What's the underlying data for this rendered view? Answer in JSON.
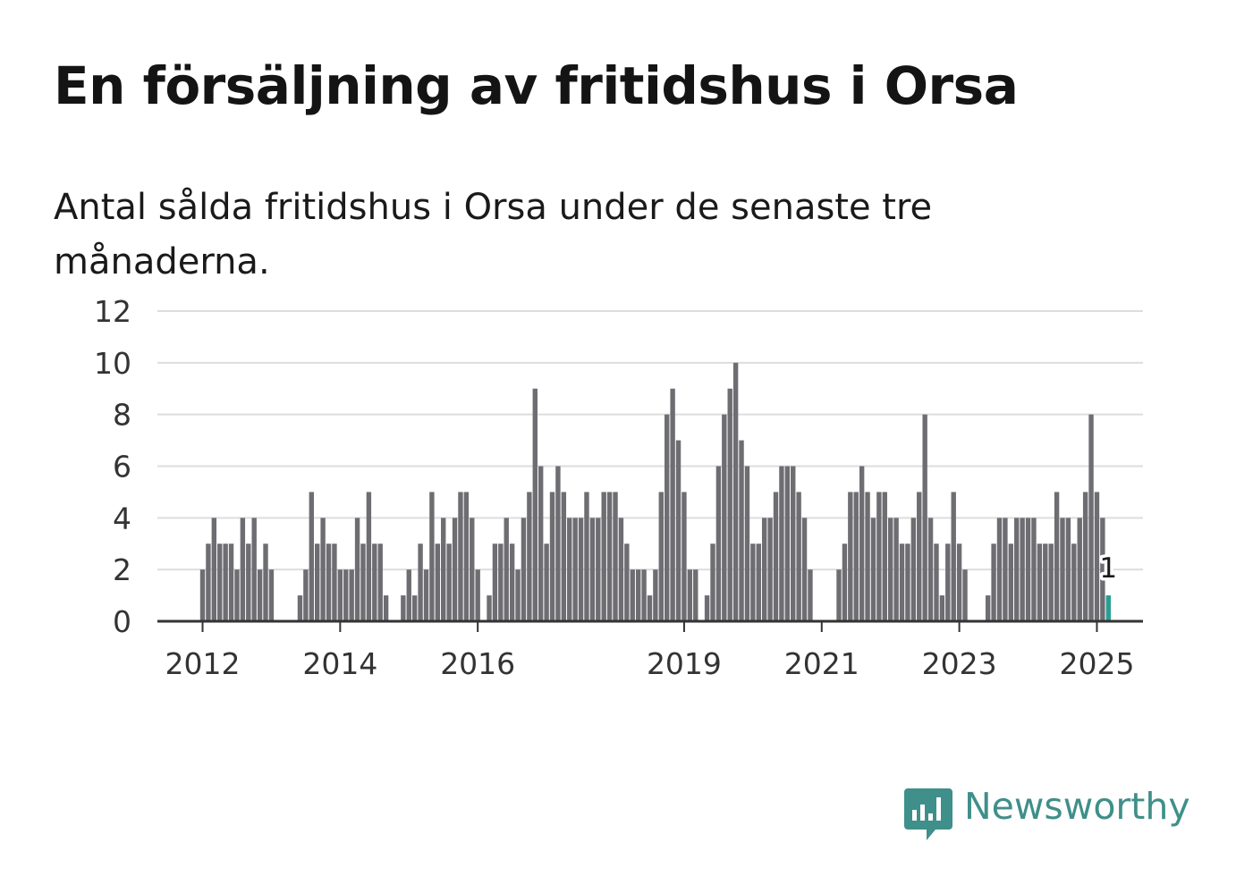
{
  "title": "En försäljning av fritidshus i Orsa",
  "subtitle": "Antal sålda fritidshus i Orsa under de senaste tre månaderna.",
  "brand": {
    "name": "Newsworthy",
    "color": "#3f8f8a",
    "icon": "chart-speech-bubble-icon"
  },
  "colors": {
    "bar": "#6e6d72",
    "highlight": "#2b9d95",
    "grid": "#dddddd",
    "axis": "#333333"
  },
  "chart_data": {
    "type": "bar",
    "x_start": "2012-01",
    "x_end": "2025-01",
    "ylim": [
      0,
      12
    ],
    "yticks": [
      0,
      2,
      4,
      6,
      8,
      10,
      12
    ],
    "xticks": [
      "2012",
      "2014",
      "2016",
      "2019",
      "2021",
      "2023",
      "2025"
    ],
    "grid": true,
    "highlight_label": "1",
    "values": [
      2,
      3,
      4,
      3,
      3,
      3,
      2,
      4,
      3,
      4,
      2,
      3,
      2,
      0,
      0,
      0,
      0,
      1,
      2,
      5,
      3,
      4,
      3,
      3,
      2,
      2,
      2,
      4,
      3,
      5,
      3,
      3,
      1,
      0,
      0,
      1,
      2,
      1,
      3,
      2,
      5,
      3,
      4,
      3,
      4,
      5,
      5,
      4,
      2,
      0,
      1,
      3,
      3,
      4,
      3,
      2,
      4,
      5,
      9,
      6,
      3,
      5,
      6,
      5,
      4,
      4,
      4,
      5,
      4,
      4,
      5,
      5,
      5,
      4,
      3,
      2,
      2,
      2,
      1,
      2,
      5,
      8,
      9,
      7,
      5,
      2,
      2,
      0,
      1,
      3,
      6,
      8,
      9,
      10,
      7,
      6,
      3,
      3,
      4,
      4,
      5,
      6,
      6,
      6,
      5,
      4,
      2,
      0,
      0,
      0,
      0,
      2,
      3,
      5,
      5,
      6,
      5,
      4,
      5,
      5,
      4,
      4,
      3,
      3,
      4,
      5,
      8,
      4,
      3,
      1,
      3,
      5,
      3,
      2,
      0,
      0,
      0,
      1,
      3,
      4,
      4,
      3,
      4,
      4,
      4,
      4,
      3,
      3,
      3,
      5,
      4,
      4,
      3,
      4,
      5,
      8,
      5,
      4,
      1
    ]
  }
}
